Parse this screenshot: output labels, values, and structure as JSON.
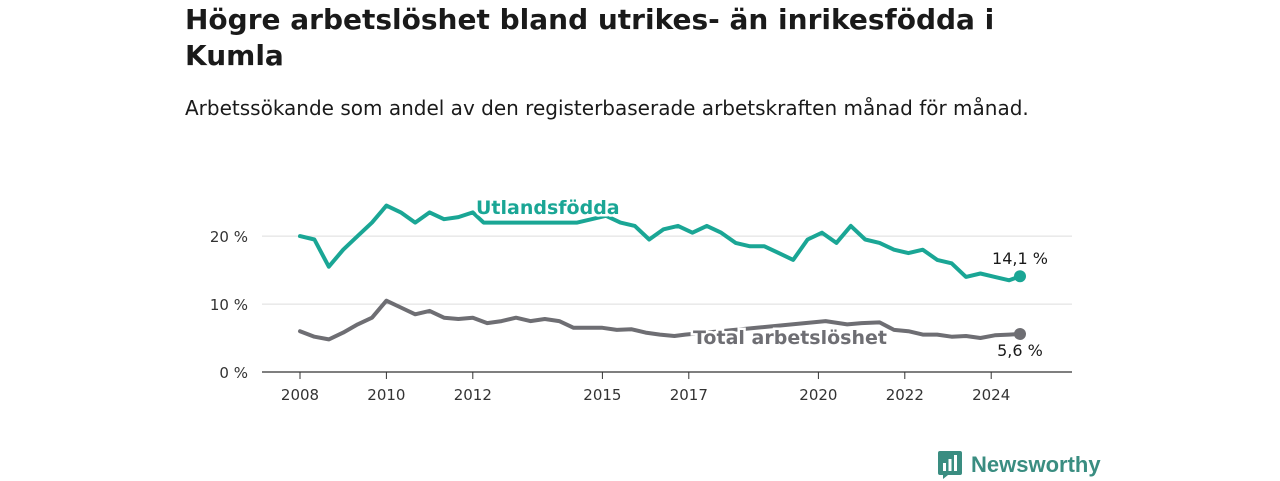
{
  "title": "Högre arbetslöshet bland utrikes- än inrikesfödda i Kumla",
  "subtitle": "Arbetssökande som andel av den registerbaserade arbetskraften månad för månad.",
  "brand": {
    "name": "Newsworthy",
    "icon": "newsworthy-chart-icon",
    "color": "#3a8d81"
  },
  "chart_data": {
    "type": "line",
    "x_ticks": [
      "2008",
      "2010",
      "2012",
      "2015",
      "2017",
      "2020",
      "2022",
      "2024"
    ],
    "y_ticks": [
      "0 %",
      "10 %",
      "20 %"
    ],
    "ylim": [
      0,
      29
    ],
    "grid": true,
    "legend": "inline labels",
    "series": [
      {
        "name": "Utlandsfödda",
        "color": "#1aa695",
        "end_label": "14,1 %",
        "points": [
          [
            "2008-01",
            20.0
          ],
          [
            "2008-05",
            19.5
          ],
          [
            "2008-09",
            15.5
          ],
          [
            "2009-01",
            18.0
          ],
          [
            "2009-05",
            20.0
          ],
          [
            "2009-09",
            22.0
          ],
          [
            "2010-01",
            24.5
          ],
          [
            "2010-05",
            23.5
          ],
          [
            "2010-09",
            22.0
          ],
          [
            "2011-01",
            23.5
          ],
          [
            "2011-05",
            22.5
          ],
          [
            "2011-09",
            22.8
          ],
          [
            "2012-01",
            23.5
          ],
          [
            "2012-04",
            22.0
          ],
          [
            "2014-06",
            22.0
          ],
          [
            "2014-10",
            22.5
          ],
          [
            "2015-02",
            23.0
          ],
          [
            "2015-06",
            22.0
          ],
          [
            "2015-10",
            21.5
          ],
          [
            "2016-02",
            19.5
          ],
          [
            "2016-06",
            21.0
          ],
          [
            "2016-10",
            21.5
          ],
          [
            "2017-02",
            20.5
          ],
          [
            "2017-06",
            21.5
          ],
          [
            "2017-10",
            20.5
          ],
          [
            "2018-02",
            19.0
          ],
          [
            "2018-06",
            18.5
          ],
          [
            "2018-10",
            18.5
          ],
          [
            "2019-02",
            17.5
          ],
          [
            "2019-06",
            16.5
          ],
          [
            "2019-10",
            19.5
          ],
          [
            "2020-02",
            20.5
          ],
          [
            "2020-06",
            19.0
          ],
          [
            "2020-10",
            21.5
          ],
          [
            "2021-02",
            19.5
          ],
          [
            "2021-06",
            19.0
          ],
          [
            "2021-10",
            18.0
          ],
          [
            "2022-02",
            17.5
          ],
          [
            "2022-06",
            18.0
          ],
          [
            "2022-10",
            16.5
          ],
          [
            "2023-02",
            16.0
          ],
          [
            "2023-06",
            14.0
          ],
          [
            "2023-10",
            14.5
          ],
          [
            "2024-02",
            14.0
          ],
          [
            "2024-06",
            13.5
          ],
          [
            "2024-09",
            14.1
          ]
        ]
      },
      {
        "name": "Total arbetslöshet",
        "color": "#6e6e73",
        "end_label": "5,6 %",
        "points": [
          [
            "2008-01",
            6.0
          ],
          [
            "2008-05",
            5.2
          ],
          [
            "2008-09",
            4.8
          ],
          [
            "2009-01",
            5.8
          ],
          [
            "2009-05",
            7.0
          ],
          [
            "2009-09",
            8.0
          ],
          [
            "2010-01",
            10.5
          ],
          [
            "2010-05",
            9.5
          ],
          [
            "2010-09",
            8.5
          ],
          [
            "2011-01",
            9.0
          ],
          [
            "2011-05",
            8.0
          ],
          [
            "2011-09",
            7.8
          ],
          [
            "2012-01",
            8.0
          ],
          [
            "2012-05",
            7.2
          ],
          [
            "2012-09",
            7.5
          ],
          [
            "2013-01",
            8.0
          ],
          [
            "2013-05",
            7.5
          ],
          [
            "2013-09",
            7.8
          ],
          [
            "2014-01",
            7.5
          ],
          [
            "2014-05",
            6.5
          ],
          [
            "2014-09",
            6.5
          ],
          [
            "2015-01",
            6.5
          ],
          [
            "2015-05",
            6.2
          ],
          [
            "2015-09",
            6.3
          ],
          [
            "2016-01",
            5.8
          ],
          [
            "2016-05",
            5.5
          ],
          [
            "2016-09",
            5.3
          ],
          [
            "2016-12",
            5.5
          ],
          [
            "2020-03",
            7.5
          ],
          [
            "2020-09",
            7.0
          ],
          [
            "2021-01",
            7.2
          ],
          [
            "2021-06",
            7.3
          ],
          [
            "2021-10",
            6.2
          ],
          [
            "2022-02",
            6.0
          ],
          [
            "2022-06",
            5.5
          ],
          [
            "2022-10",
            5.5
          ],
          [
            "2023-02",
            5.2
          ],
          [
            "2023-06",
            5.3
          ],
          [
            "2023-10",
            5.0
          ],
          [
            "2024-02",
            5.4
          ],
          [
            "2024-06",
            5.5
          ],
          [
            "2024-09",
            5.6
          ]
        ]
      }
    ]
  }
}
